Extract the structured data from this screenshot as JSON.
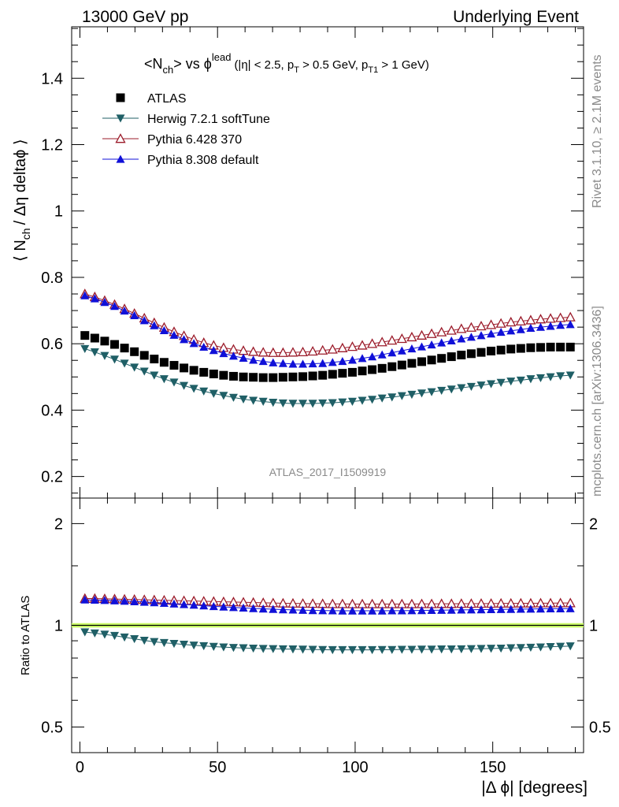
{
  "header": {
    "left": "13000 GeV pp",
    "right": "Underlying Event"
  },
  "side_labels": {
    "rivet": "Rivet 3.1.10, ≥ 2.1M events",
    "mcplots": "mcplots.cern.ch [arXiv:1306.3436]"
  },
  "title": {
    "main": "<N",
    "main_sub": "ch",
    "main_mid": "> vs ϕ",
    "main_sup": "lead",
    "cuts": "(|η| < 2.5, p",
    "cuts_sub1": "T",
    "cuts_mid": " > 0.5 GeV, p",
    "cuts_sub2": "T1",
    "cuts_end": " > 1 GeV)"
  },
  "watermark": "ATLAS_2017_I1509919",
  "axes": {
    "ylabel_top_a": "⟨ N",
    "ylabel_top_sub": "ch",
    "ylabel_top_b": "/ Δη deltaϕ ⟩",
    "ylabel_bottom": "Ratio to ATLAS",
    "xlabel": "|Δ ϕ| [degrees]"
  },
  "chart_data": {
    "type": "scatter",
    "x": [
      1.8,
      5.4,
      9.0,
      12.6,
      16.2,
      19.8,
      23.4,
      27.0,
      30.6,
      34.2,
      37.8,
      41.4,
      45.0,
      48.6,
      52.2,
      55.8,
      59.4,
      63.0,
      66.6,
      70.2,
      73.8,
      77.4,
      81.0,
      84.6,
      88.2,
      91.8,
      95.4,
      99.0,
      102.6,
      106.2,
      109.8,
      113.4,
      117.0,
      120.6,
      124.2,
      127.8,
      131.4,
      135.0,
      138.6,
      142.2,
      145.8,
      149.4,
      153.0,
      156.6,
      160.2,
      163.8,
      167.4,
      171.0,
      174.6,
      178.2
    ],
    "xlim": [
      -3,
      183
    ],
    "x_ticks": [
      0,
      50,
      100,
      150
    ],
    "top_panel": {
      "ylim": [
        0.135,
        1.555
      ],
      "y_ticks": [
        0.2,
        0.4,
        0.6,
        0.8,
        1,
        1.2,
        1.4
      ],
      "series": [
        {
          "name": "ATLAS",
          "marker": "square",
          "color": "#000000",
          "values": [
            0.625,
            0.617,
            0.608,
            0.598,
            0.587,
            0.576,
            0.565,
            0.554,
            0.544,
            0.535,
            0.527,
            0.52,
            0.514,
            0.509,
            0.505,
            0.502,
            0.5,
            0.499,
            0.498,
            0.498,
            0.499,
            0.5,
            0.501,
            0.503,
            0.505,
            0.508,
            0.511,
            0.514,
            0.518,
            0.522,
            0.526,
            0.531,
            0.536,
            0.541,
            0.546,
            0.551,
            0.556,
            0.561,
            0.566,
            0.57,
            0.574,
            0.578,
            0.581,
            0.584,
            0.586,
            0.588,
            0.589,
            0.59,
            0.59,
            0.59
          ]
        },
        {
          "name": "Herwig 7.2.1 softTune",
          "marker": "triangle-down",
          "color": "#1f5f66",
          "values": [
            0.585,
            0.575,
            0.564,
            0.553,
            0.541,
            0.529,
            0.517,
            0.505,
            0.494,
            0.484,
            0.474,
            0.465,
            0.457,
            0.45,
            0.444,
            0.438,
            0.433,
            0.429,
            0.426,
            0.423,
            0.421,
            0.42,
            0.42,
            0.42,
            0.421,
            0.422,
            0.424,
            0.426,
            0.429,
            0.432,
            0.436,
            0.439,
            0.443,
            0.447,
            0.451,
            0.455,
            0.459,
            0.463,
            0.467,
            0.471,
            0.475,
            0.479,
            0.483,
            0.487,
            0.49,
            0.494,
            0.497,
            0.5,
            0.503,
            0.505
          ]
        },
        {
          "name": "Pythia 6.428 370",
          "marker": "triangle-up-open",
          "color": "#9b1b2a",
          "values": [
            0.75,
            0.741,
            0.73,
            0.718,
            0.705,
            0.691,
            0.677,
            0.663,
            0.649,
            0.636,
            0.624,
            0.613,
            0.603,
            0.595,
            0.588,
            0.583,
            0.579,
            0.576,
            0.574,
            0.573,
            0.573,
            0.574,
            0.575,
            0.577,
            0.58,
            0.583,
            0.587,
            0.591,
            0.595,
            0.6,
            0.605,
            0.61,
            0.615,
            0.62,
            0.625,
            0.63,
            0.635,
            0.64,
            0.645,
            0.649,
            0.653,
            0.657,
            0.661,
            0.665,
            0.668,
            0.671,
            0.674,
            0.676,
            0.678,
            0.68
          ]
        },
        {
          "name": "Pythia 8.308 default",
          "marker": "triangle-up",
          "color": "#1010d8",
          "values": [
            0.745,
            0.736,
            0.725,
            0.713,
            0.699,
            0.685,
            0.67,
            0.655,
            0.64,
            0.626,
            0.613,
            0.601,
            0.59,
            0.58,
            0.571,
            0.563,
            0.557,
            0.551,
            0.547,
            0.543,
            0.541,
            0.539,
            0.539,
            0.54,
            0.541,
            0.544,
            0.547,
            0.551,
            0.556,
            0.561,
            0.567,
            0.573,
            0.579,
            0.585,
            0.591,
            0.597,
            0.603,
            0.609,
            0.615,
            0.62,
            0.625,
            0.63,
            0.635,
            0.639,
            0.643,
            0.647,
            0.65,
            0.653,
            0.656,
            0.658
          ]
        }
      ]
    },
    "ratio_panel": {
      "ylim": [
        0.42,
        2.38
      ],
      "scale": "log",
      "y_ticks": [
        0.5,
        1,
        2
      ],
      "reference_band": {
        "low": 0.985,
        "high": 1.015,
        "color": "#ccff66"
      },
      "series": [
        {
          "name": "Herwig 7.2.1 softTune",
          "marker": "triangle-down",
          "color": "#1f5f66",
          "values": [
            0.955,
            0.948,
            0.94,
            0.932,
            0.922,
            0.912,
            0.902,
            0.894,
            0.888,
            0.883,
            0.878,
            0.873,
            0.869,
            0.865,
            0.862,
            0.859,
            0.857,
            0.855,
            0.853,
            0.852,
            0.851,
            0.85,
            0.849,
            0.848,
            0.847,
            0.846,
            0.846,
            0.846,
            0.846,
            0.846,
            0.847,
            0.847,
            0.848,
            0.848,
            0.849,
            0.849,
            0.85,
            0.85,
            0.851,
            0.852,
            0.853,
            0.854,
            0.855,
            0.857,
            0.858,
            0.86,
            0.862,
            0.864,
            0.866,
            0.868
          ]
        },
        {
          "name": "Pythia 6.428 370",
          "marker": "triangle-up-open",
          "color": "#9b1b2a",
          "values": [
            1.2,
            1.2,
            1.198,
            1.196,
            1.194,
            1.192,
            1.19,
            1.188,
            1.186,
            1.184,
            1.182,
            1.18,
            1.178,
            1.176,
            1.174,
            1.172,
            1.17,
            1.168,
            1.166,
            1.164,
            1.162,
            1.161,
            1.16,
            1.159,
            1.158,
            1.157,
            1.157,
            1.156,
            1.156,
            1.156,
            1.156,
            1.156,
            1.156,
            1.156,
            1.157,
            1.157,
            1.158,
            1.158,
            1.159,
            1.159,
            1.16,
            1.16,
            1.161,
            1.161,
            1.162,
            1.162,
            1.163,
            1.163,
            1.164,
            1.164
          ]
        },
        {
          "name": "Pythia 8.308 default",
          "marker": "triangle-up",
          "color": "#1010d8",
          "values": [
            1.19,
            1.188,
            1.186,
            1.183,
            1.18,
            1.176,
            1.172,
            1.168,
            1.163,
            1.158,
            1.153,
            1.148,
            1.143,
            1.138,
            1.134,
            1.13,
            1.126,
            1.122,
            1.119,
            1.116,
            1.113,
            1.111,
            1.109,
            1.107,
            1.106,
            1.105,
            1.104,
            1.104,
            1.104,
            1.104,
            1.104,
            1.105,
            1.105,
            1.106,
            1.107,
            1.108,
            1.109,
            1.11,
            1.111,
            1.112,
            1.113,
            1.114,
            1.115,
            1.116,
            1.117,
            1.118,
            1.119,
            1.12,
            1.12,
            1.121
          ]
        }
      ]
    },
    "legend_position": "top-left"
  }
}
